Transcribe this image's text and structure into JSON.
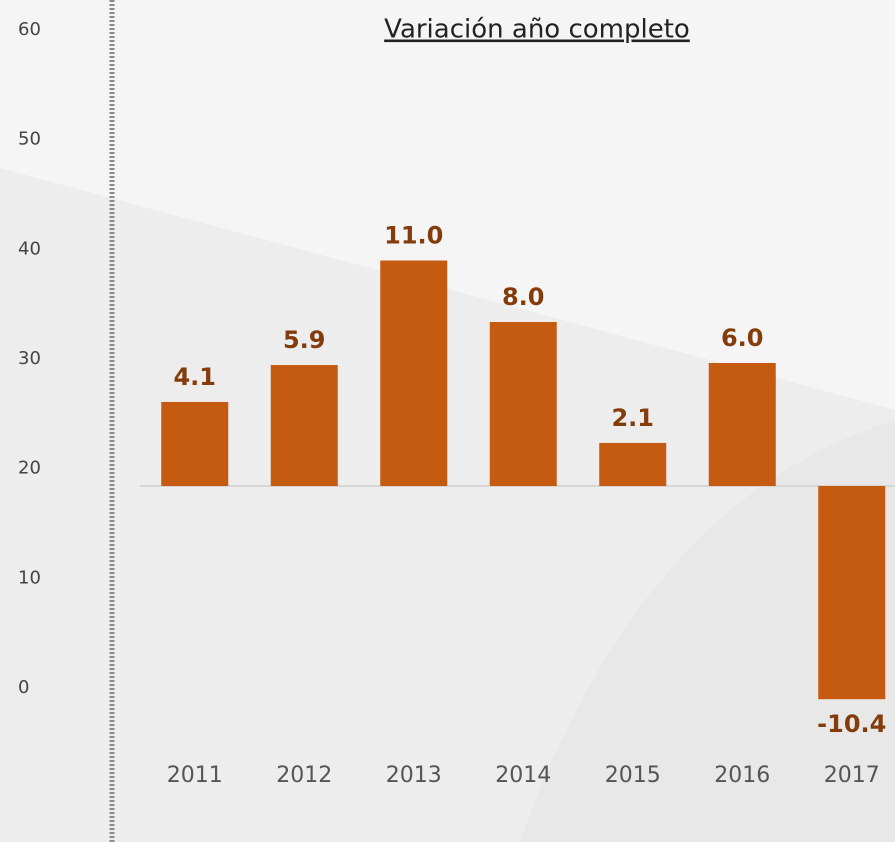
{
  "chart_data": [
    {
      "type": "axis",
      "ylim": [
        0,
        60
      ],
      "yticks": [
        0,
        10,
        20,
        30,
        40,
        50,
        60
      ]
    },
    {
      "type": "bar",
      "title": "Variación año completo",
      "categories": [
        "2011",
        "2012",
        "2013",
        "2014",
        "2015",
        "2016",
        "2017"
      ],
      "values": [
        4.1,
        5.9,
        11.0,
        8.0,
        2.1,
        6.0,
        -10.4
      ],
      "value_labels": [
        "4.1",
        "5.9",
        "11.0",
        "8.0",
        "2.1",
        "6.0",
        "-10.4"
      ],
      "color": "#c55a11",
      "label_color": "#843c0c"
    }
  ]
}
